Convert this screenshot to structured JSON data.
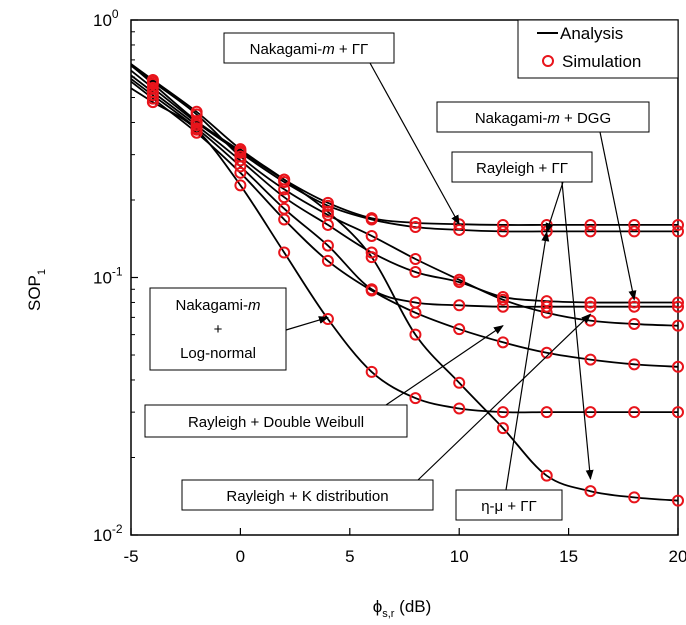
{
  "chart_data": {
    "type": "line",
    "xlabel": "ϕ",
    "xlabel_sub": "s,r",
    "xlabel_unit": " (dB)",
    "ylabel": "SOP",
    "ylabel_sub": "1",
    "xlim": [
      -5,
      20
    ],
    "ylim": [
      0.01,
      1
    ],
    "yscale": "log",
    "grid": false,
    "legend": {
      "placement": "top-right",
      "analysis_label": "Analysis",
      "simulation_label": "Simulation"
    },
    "x_ticks": [
      {
        "value": -5,
        "label": "-5"
      },
      {
        "value": 0,
        "label": "0"
      },
      {
        "value": 5,
        "label": "5"
      },
      {
        "value": 10,
        "label": "10"
      },
      {
        "value": 15,
        "label": "15"
      },
      {
        "value": 20,
        "label": "20"
      }
    ],
    "y_ticks": [
      {
        "value": 1,
        "base": "10",
        "exp": "0"
      },
      {
        "value": 0.1,
        "base": "10",
        "exp": "-1"
      },
      {
        "value": 0.01,
        "base": "10",
        "exp": "-2"
      }
    ],
    "x": [
      -4,
      -2,
      0,
      2,
      4,
      6,
      8,
      10,
      12,
      14,
      16,
      18,
      20
    ],
    "curves": [
      {
        "values": [
          0.565,
          0.405,
          0.31,
          0.24,
          0.195,
          0.17,
          0.163,
          0.161,
          0.16,
          0.16,
          0.16,
          0.16,
          0.16
        ]
      },
      {
        "values": [
          0.545,
          0.4,
          0.305,
          0.235,
          0.19,
          0.168,
          0.157,
          0.153,
          0.151,
          0.151,
          0.151,
          0.151,
          0.151
        ]
      },
      {
        "values": [
          0.525,
          0.39,
          0.285,
          0.205,
          0.16,
          0.125,
          0.105,
          0.096,
          0.084,
          0.081,
          0.08,
          0.08,
          0.08
        ]
      },
      {
        "values": [
          0.51,
          0.38,
          0.27,
          0.185,
          0.133,
          0.09,
          0.08,
          0.078,
          0.077,
          0.077,
          0.077,
          0.077,
          0.077
        ]
      },
      {
        "values": [
          0.575,
          0.43,
          0.295,
          0.22,
          0.175,
          0.145,
          0.118,
          0.098,
          0.082,
          0.073,
          0.068,
          0.066,
          0.065
        ]
      },
      {
        "values": [
          0.495,
          0.365,
          0.255,
          0.168,
          0.116,
          0.089,
          0.073,
          0.063,
          0.056,
          0.051,
          0.048,
          0.046,
          0.045
        ]
      },
      {
        "values": [
          0.48,
          0.375,
          0.228,
          0.125,
          0.069,
          0.043,
          0.034,
          0.031,
          0.03,
          0.03,
          0.03,
          0.03,
          0.03
        ]
      },
      {
        "values": [
          0.585,
          0.44,
          0.315,
          0.24,
          0.18,
          0.12,
          0.06,
          0.039,
          0.026,
          0.017,
          0.0148,
          0.014,
          0.0136
        ]
      }
    ],
    "annotations": [
      {
        "lines": [
          "Nakagami-",
          "m",
          " + ΓΓ"
        ],
        "arrow_to": [
          10,
          0.161
        ]
      },
      {
        "lines": [
          "Nakagami-",
          "m",
          " + DGG"
        ],
        "arrow_to": [
          18,
          0.082
        ]
      },
      {
        "lines": [
          "Rayleigh + ΓΓ"
        ],
        "arrow_to": [
          14,
          0.15
        ]
      },
      {
        "lines": [
          "Nakagami-m",
          "+",
          "Log-normal"
        ],
        "arrow_to": [
          4,
          0.07
        ]
      },
      {
        "lines": [
          "Rayleigh + Double Weibull"
        ],
        "arrow_to": [
          12,
          0.065
        ]
      },
      {
        "lines": [
          "Rayleigh + K distribution"
        ],
        "arrow_to": [
          16,
          0.072
        ]
      },
      {
        "lines": [
          "η-μ + ΓΓ"
        ],
        "arrow_to": [
          14,
          0.15
        ]
      }
    ]
  }
}
